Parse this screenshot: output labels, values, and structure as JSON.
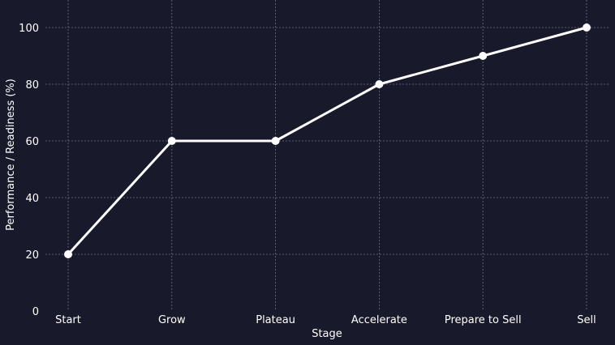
{
  "chart_data": {
    "type": "line",
    "title": "",
    "xlabel": "Stage",
    "ylabel": "Performance / Readiness (%)",
    "categories": [
      "Start",
      "Grow",
      "Plateau",
      "Accelerate",
      "Prepare to Sell",
      "Sell"
    ],
    "series": [
      {
        "name": "Performance / Readiness",
        "values": [
          20,
          60,
          60,
          80,
          90,
          100
        ]
      }
    ],
    "ylim": [
      0,
      100
    ],
    "yticks": [
      0,
      20,
      40,
      60,
      80,
      100
    ],
    "grid": true,
    "legend": "none",
    "colors": {
      "background": "#181a2b",
      "line": "#ffffff",
      "grid": "#6b6e85",
      "text": "#ffffff"
    }
  }
}
